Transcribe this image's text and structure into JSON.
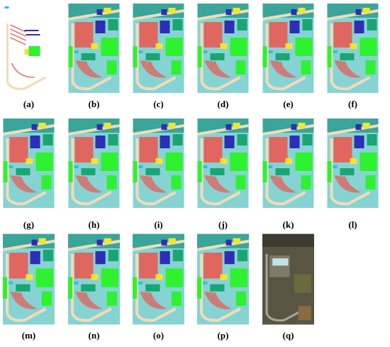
{
  "panels": [
    {
      "label": "(a)"
    },
    {
      "label": "(b)"
    },
    {
      "label": "(c)"
    },
    {
      "label": "(d)"
    },
    {
      "label": "(e)"
    },
    {
      "label": "(f)"
    },
    {
      "label": "(g)"
    },
    {
      "label": "(h)"
    },
    {
      "label": "(i)"
    },
    {
      "label": "(j)"
    },
    {
      "label": "(k)"
    },
    {
      "label": "(l)"
    },
    {
      "label": "(m)"
    },
    {
      "label": "(n)"
    },
    {
      "label": "(o)"
    },
    {
      "label": "(p)"
    },
    {
      "label": "(q)"
    }
  ]
}
